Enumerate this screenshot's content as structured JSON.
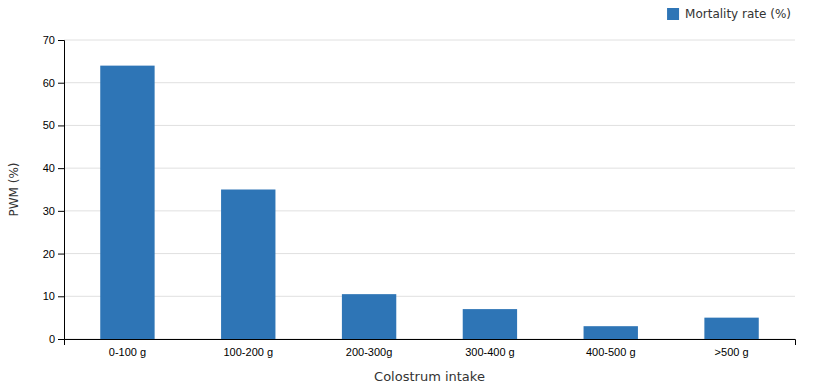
{
  "chart_data": {
    "type": "bar",
    "xlabel": "Colostrum intake",
    "ylabel": "PWM (%)",
    "categories": [
      "0-100 g",
      "100-200 g",
      "200-300g",
      "300-400 g",
      "400-500 g",
      ">500 g"
    ],
    "series": [
      {
        "name": "Mortality rate (%)",
        "color": "#2e75b6",
        "values": [
          64,
          35,
          10.5,
          7,
          3,
          5
        ]
      }
    ],
    "ylim": [
      0,
      70
    ],
    "yticks": [
      0,
      10,
      20,
      30,
      40,
      50,
      60,
      70
    ],
    "grid": true,
    "legend": "upper right"
  }
}
